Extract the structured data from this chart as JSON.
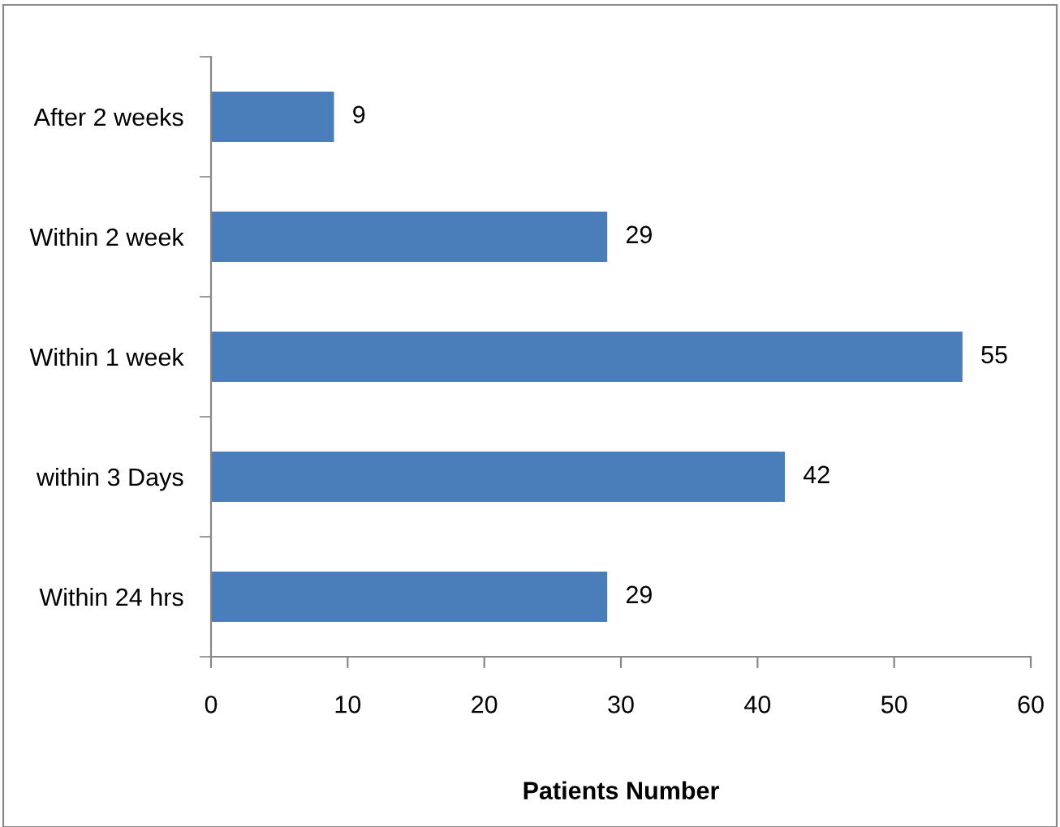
{
  "chart_data": {
    "type": "bar",
    "orientation": "horizontal",
    "categories": [
      "After 2 weeks",
      "Within 2 week",
      "Within 1 week",
      "within 3 Days",
      "Within 24 hrs"
    ],
    "values": [
      9,
      29,
      55,
      42,
      29
    ],
    "color": "#4a7ebb",
    "xlim": [
      0,
      60
    ],
    "xticks": [
      0,
      10,
      20,
      30,
      40,
      50,
      60
    ],
    "xlabel": "Patients Number",
    "data_labels": true,
    "grid": false,
    "legend": false
  }
}
